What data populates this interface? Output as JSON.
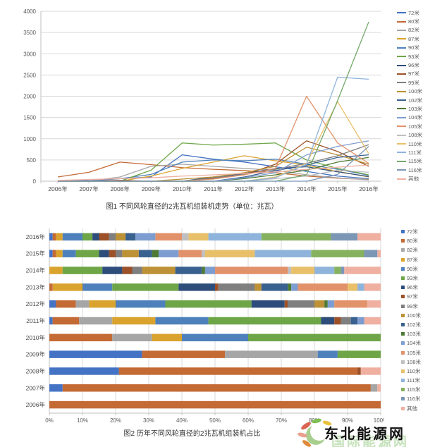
{
  "page": {
    "background": "#ffffff"
  },
  "watermark": {
    "title": "东北能源网",
    "shadow": "国际能源网",
    "logo": "leaf-petal-circle-logo",
    "logo_colors": {
      "crescent": "#A8CF8E",
      "leaf_green": "#7FBF52",
      "petal_red": "#D96452",
      "petal_salmon": "#E8A08F",
      "petal_yellow": "#E8C23E",
      "petal_orange": "#E08A3C"
    }
  },
  "chart_data": [
    {
      "type": "line",
      "title": "图1 不同风轮直径的2兆瓦机组装机走势（单位：兆瓦）",
      "xlabel": "",
      "ylabel": "",
      "grid": true,
      "legend_position": "right",
      "ylim": [
        0,
        4000
      ],
      "y_ticks": [
        0,
        500,
        1000,
        1500,
        2000,
        2500,
        3000,
        3500,
        4000
      ],
      "x": [
        "2006年",
        "2007年",
        "2008年",
        "2009年",
        "2010年",
        "2011年",
        "2012年",
        "2013年",
        "2014年",
        "2015年",
        "2016年"
      ],
      "series": [
        {
          "name": "72米",
          "color": "#4472C4",
          "values": [
            0,
            30,
            60,
            100,
            620,
            520,
            450,
            340,
            230,
            120,
            60
          ]
        },
        {
          "name": "80米",
          "color": "#C46A35",
          "values": [
            100,
            210,
            450,
            390,
            320,
            280,
            250,
            200,
            120,
            70,
            40
          ]
        },
        {
          "name": "82米",
          "color": "#A6A6A6",
          "values": [
            0,
            0,
            100,
            350,
            400,
            350,
            300,
            260,
            150,
            80,
            30
          ]
        },
        {
          "name": "87米",
          "color": "#D9A32E",
          "values": [
            0,
            0,
            0,
            120,
            300,
            450,
            600,
            480,
            380,
            230,
            100
          ]
        },
        {
          "name": "90米",
          "color": "#4E81BC",
          "values": [
            0,
            0,
            60,
            160,
            450,
            500,
            480,
            520,
            400,
            280,
            140
          ]
        },
        {
          "name": "93米",
          "color": "#6EA647",
          "values": [
            0,
            0,
            0,
            260,
            900,
            850,
            870,
            900,
            500,
            300,
            150
          ]
        },
        {
          "name": "96米",
          "color": "#2E4D7B",
          "values": [
            0,
            0,
            0,
            0,
            0,
            100,
            180,
            300,
            340,
            220,
            110
          ]
        },
        {
          "name": "97米",
          "color": "#9C5129",
          "values": [
            0,
            0,
            20,
            0,
            0,
            60,
            150,
            400,
            950,
            700,
            350
          ]
        },
        {
          "name": "99米",
          "color": "#7F7F7F",
          "values": [
            0,
            0,
            0,
            0,
            0,
            80,
            160,
            280,
            420,
            600,
            860
          ]
        },
        {
          "name": "100米",
          "color": "#BD9135",
          "values": [
            0,
            0,
            0,
            0,
            50,
            100,
            200,
            350,
            800,
            620,
            400
          ]
        },
        {
          "name": "102米",
          "color": "#39618F",
          "values": [
            0,
            0,
            0,
            0,
            0,
            0,
            100,
            250,
            380,
            560,
            620
          ]
        },
        {
          "name": "103米",
          "color": "#4E7A34",
          "values": [
            0,
            0,
            0,
            0,
            0,
            0,
            60,
            150,
            260,
            450,
            560
          ]
        },
        {
          "name": "104米",
          "color": "#7D9DD0",
          "values": [
            0,
            0,
            0,
            0,
            0,
            0,
            80,
            200,
            620,
            820,
            950
          ]
        },
        {
          "name": "105米",
          "color": "#E2926A",
          "values": [
            0,
            0,
            0,
            0,
            0,
            50,
            150,
            300,
            2000,
            900,
            420
          ]
        },
        {
          "name": "108米",
          "color": "#BFBFBF",
          "values": [
            0,
            0,
            0,
            0,
            0,
            0,
            0,
            60,
            120,
            260,
            210
          ]
        },
        {
          "name": "110米",
          "color": "#E8C06A",
          "values": [
            0,
            0,
            0,
            0,
            0,
            0,
            0,
            100,
            420,
            1870,
            650
          ]
        },
        {
          "name": "111米",
          "color": "#8FB4DC",
          "values": [
            0,
            0,
            0,
            0,
            0,
            0,
            0,
            80,
            400,
            2450,
            2400
          ]
        },
        {
          "name": "115米",
          "color": "#74A86B",
          "values": [
            0,
            0,
            0,
            0,
            0,
            0,
            0,
            0,
            150,
            1900,
            3750
          ]
        },
        {
          "name": "116米",
          "color": "#7C97B6",
          "values": [
            0,
            0,
            0,
            0,
            0,
            0,
            0,
            0,
            0,
            160,
            820
          ]
        },
        {
          "name": "其他",
          "color": "#EFB0A1",
          "values": [
            20,
            40,
            60,
            80,
            120,
            150,
            180,
            220,
            280,
            330,
            380
          ]
        }
      ]
    },
    {
      "type": "bar",
      "subtype": "stacked-horizontal-percent",
      "title": "图2 历年不同风轮直径的2兆瓦机组装机占比",
      "xlabel": "",
      "ylabel": "",
      "grid": true,
      "legend_position": "right",
      "xlim": [
        0,
        100
      ],
      "x_ticks": [
        "0%",
        "10%",
        "20%",
        "30%",
        "40%",
        "50%",
        "60%",
        "70%",
        "80%",
        "90%",
        "100%"
      ],
      "categories": [
        "2016年",
        "2015年",
        "2014年",
        "2013年",
        "2012年",
        "2011年",
        "2010年",
        "2009年",
        "2008年",
        "2007年",
        "2006年"
      ],
      "series": [
        {
          "name": "72米",
          "color": "#4472C4",
          "values": [
            1,
            1,
            0,
            0,
            2,
            1,
            0,
            28,
            21,
            4,
            0
          ]
        },
        {
          "name": "80米",
          "color": "#C46A35",
          "values": [
            1,
            1,
            0,
            1,
            6,
            8,
            19,
            25,
            72,
            93,
            100
          ]
        },
        {
          "name": "82米",
          "color": "#A6A6A6",
          "values": [
            0,
            0,
            0,
            0,
            4,
            10,
            12,
            28,
            0,
            2,
            0
          ]
        },
        {
          "name": "87米",
          "color": "#D9A32E",
          "values": [
            2,
            2,
            4,
            9,
            8,
            13,
            9,
            0,
            0,
            0,
            0
          ]
        },
        {
          "name": "90米",
          "color": "#4E81BC",
          "values": [
            6,
            4,
            0,
            9,
            15,
            16,
            20,
            6,
            0,
            0,
            0
          ]
        },
        {
          "name": "93米",
          "color": "#6EA647",
          "values": [
            3,
            7,
            12,
            20,
            26,
            34,
            40,
            13,
            0,
            0,
            0
          ]
        },
        {
          "name": "96米",
          "color": "#2E4D7B",
          "values": [
            2,
            3,
            6,
            11,
            10,
            4,
            0,
            0,
            0,
            0,
            0
          ]
        },
        {
          "name": "97米",
          "color": "#9C5129",
          "values": [
            3,
            2,
            3,
            1,
            1,
            2,
            0,
            0,
            1,
            0,
            0
          ]
        },
        {
          "name": "99米",
          "color": "#7F7F7F",
          "values": [
            2,
            2,
            3,
            11,
            8,
            3,
            0,
            0,
            0,
            0,
            0
          ]
        },
        {
          "name": "100米",
          "color": "#BD9135",
          "values": [
            3,
            5,
            10,
            2,
            3,
            0,
            0,
            0,
            0,
            0,
            0
          ]
        },
        {
          "name": "102米",
          "color": "#39618F",
          "values": [
            3,
            4,
            8,
            8,
            0,
            2,
            0,
            0,
            0,
            0,
            0
          ]
        },
        {
          "name": "103米",
          "color": "#4E7A34",
          "values": [
            0,
            2,
            1,
            1,
            1,
            0,
            0,
            0,
            0,
            0,
            0
          ]
        },
        {
          "name": "104米",
          "color": "#7D9DD0",
          "values": [
            6,
            6,
            3,
            2,
            2,
            2,
            0,
            0,
            0,
            0,
            0
          ]
        },
        {
          "name": "105米",
          "color": "#E2926A",
          "values": [
            8,
            7,
            22,
            15,
            10,
            0,
            0,
            0,
            0,
            0,
            0
          ]
        },
        {
          "name": "108米",
          "color": "#BFBFBF",
          "values": [
            2,
            1,
            1,
            0,
            0,
            0,
            0,
            0,
            0,
            0,
            0
          ]
        },
        {
          "name": "110米",
          "color": "#E8C06A",
          "values": [
            6,
            15,
            7,
            3,
            0,
            0,
            0,
            0,
            0,
            0,
            0
          ]
        },
        {
          "name": "111米",
          "color": "#8FB4DC",
          "values": [
            16,
            17,
            6,
            2,
            0,
            0,
            0,
            0,
            0,
            0,
            0
          ]
        },
        {
          "name": "115米",
          "color": "#86B25F",
          "values": [
            21,
            16,
            2,
            0,
            0,
            0,
            0,
            0,
            0,
            0,
            0
          ]
        },
        {
          "name": "116米",
          "color": "#7C97B6",
          "values": [
            8,
            4,
            1,
            0,
            0,
            0,
            0,
            0,
            0,
            0,
            0
          ]
        },
        {
          "name": "其他",
          "color": "#EFB0A1",
          "values": [
            7,
            1,
            11,
            5,
            4,
            5,
            0,
            0,
            6,
            1,
            0
          ]
        }
      ]
    }
  ]
}
